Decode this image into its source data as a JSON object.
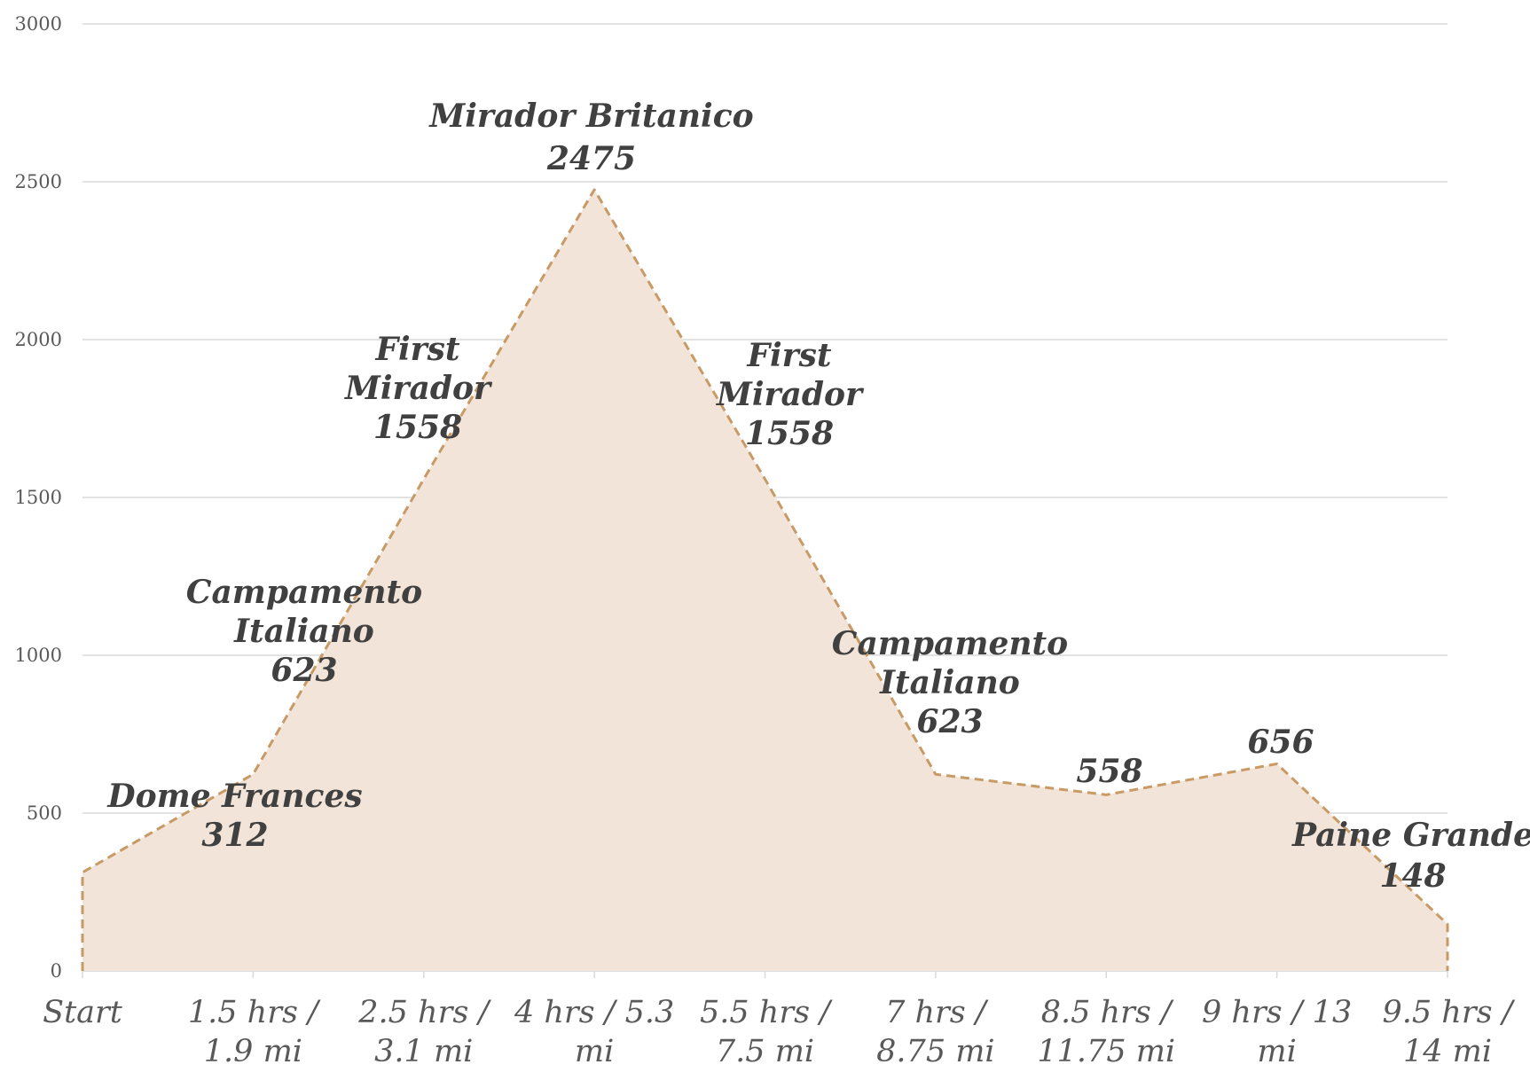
{
  "chart_data": {
    "type": "area",
    "title": "",
    "xlabel": "",
    "ylabel": "",
    "categories": [
      "Start",
      "1.5 hrs / 1.9 mi",
      "2.5 hrs / 3.1 mi",
      "4 hrs / 5.3 mi",
      "5.5 hrs / 7.5 mi",
      "7 hrs / 8.75 mi",
      "8.5 hrs / 11.75 mi",
      "9 hrs / 13 mi",
      "9.5 hrs / 14 mi"
    ],
    "category_lines": [
      [
        "Start"
      ],
      [
        "1.5 hrs /",
        "1.9 mi"
      ],
      [
        "2.5 hrs /",
        "3.1 mi"
      ],
      [
        "4 hrs / 5.3",
        "mi"
      ],
      [
        "5.5 hrs /",
        "7.5 mi"
      ],
      [
        "7 hrs /",
        "8.75 mi"
      ],
      [
        "8.5 hrs /",
        "11.75 mi"
      ],
      [
        "9 hrs / 13",
        "mi"
      ],
      [
        "9.5 hrs /",
        "14 mi"
      ]
    ],
    "series": [
      {
        "values": [
          312,
          623,
          1558,
          2475,
          1558,
          623,
          558,
          656,
          148
        ]
      }
    ],
    "data_labels": [
      {
        "lines": [
          "Dome Frances",
          "312"
        ]
      },
      {
        "lines": [
          "Campamento",
          "Italiano",
          "623"
        ]
      },
      {
        "lines": [
          "First",
          "Mirador",
          "1558"
        ]
      },
      {
        "lines": [
          "Mirador Britanico",
          "2475"
        ]
      },
      {
        "lines": [
          "First",
          "Mirador",
          "1558"
        ]
      },
      {
        "lines": [
          "Campamento",
          "Italiano",
          "623"
        ]
      },
      {
        "lines": [
          "558"
        ]
      },
      {
        "lines": [
          "656"
        ]
      },
      {
        "lines": [
          "Paine Grande",
          "148"
        ]
      }
    ],
    "ylim": [
      0,
      3000
    ],
    "yticks": [
      0,
      500,
      1000,
      1500,
      2000,
      2500,
      3000
    ],
    "grid": true,
    "legend": "none",
    "colors": {
      "fill": "#f2e4d8",
      "line": "#c89a65",
      "grid": "#d9d9d9",
      "tick_text": "#595959",
      "label_text": "#404040"
    }
  }
}
